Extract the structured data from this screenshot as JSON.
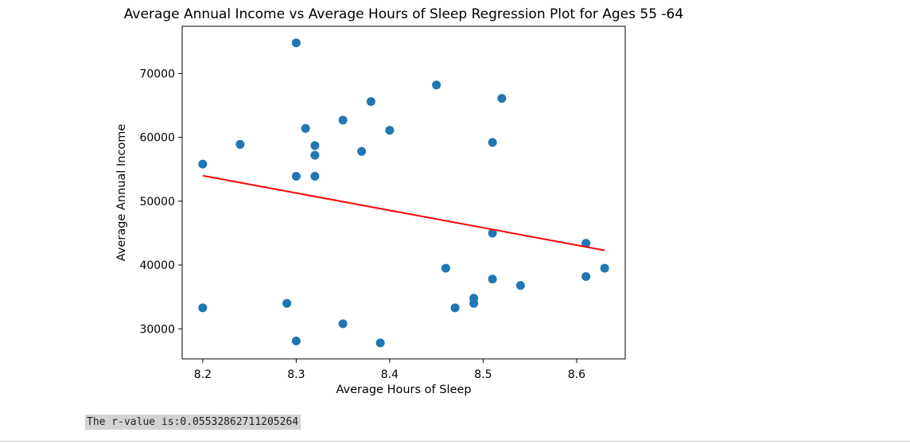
{
  "chart_data": {
    "type": "scatter",
    "title": "Average Annual Income vs Average Hours of Sleep Regression Plot for Ages 55 -64",
    "xlabel": "Average Hours of Sleep",
    "ylabel": "Average Annual Income",
    "xlim": [
      8.178,
      8.652
    ],
    "ylim": [
      25300,
      77400
    ],
    "xticks": [
      8.2,
      8.3,
      8.4,
      8.5,
      8.6
    ],
    "xtick_labels": [
      "8.2",
      "8.3",
      "8.4",
      "8.5",
      "8.6"
    ],
    "yticks": [
      30000,
      40000,
      50000,
      60000,
      70000
    ],
    "ytick_labels": [
      "30000",
      "40000",
      "50000",
      "60000",
      "70000"
    ],
    "grid": false,
    "points": [
      {
        "x": 8.3,
        "y": 74800
      },
      {
        "x": 8.45,
        "y": 68200
      },
      {
        "x": 8.52,
        "y": 66100
      },
      {
        "x": 8.38,
        "y": 65600
      },
      {
        "x": 8.35,
        "y": 62700
      },
      {
        "x": 8.31,
        "y": 61400
      },
      {
        "x": 8.4,
        "y": 61100
      },
      {
        "x": 8.51,
        "y": 59200
      },
      {
        "x": 8.24,
        "y": 58900
      },
      {
        "x": 8.32,
        "y": 58700
      },
      {
        "x": 8.37,
        "y": 57800
      },
      {
        "x": 8.32,
        "y": 57200
      },
      {
        "x": 8.2,
        "y": 55800
      },
      {
        "x": 8.3,
        "y": 53900
      },
      {
        "x": 8.32,
        "y": 53900
      },
      {
        "x": 8.51,
        "y": 45000
      },
      {
        "x": 8.61,
        "y": 43400
      },
      {
        "x": 8.46,
        "y": 39500
      },
      {
        "x": 8.63,
        "y": 39500
      },
      {
        "x": 8.61,
        "y": 38200
      },
      {
        "x": 8.51,
        "y": 37800
      },
      {
        "x": 8.54,
        "y": 36800
      },
      {
        "x": 8.49,
        "y": 34800
      },
      {
        "x": 8.29,
        "y": 34000
      },
      {
        "x": 8.49,
        "y": 34000
      },
      {
        "x": 8.2,
        "y": 33300
      },
      {
        "x": 8.47,
        "y": 33300
      },
      {
        "x": 8.35,
        "y": 30800
      },
      {
        "x": 8.3,
        "y": 28100
      },
      {
        "x": 8.39,
        "y": 27800
      }
    ],
    "regression_line": {
      "x": [
        8.2,
        8.63
      ],
      "y": [
        54000,
        42300
      ]
    },
    "colors": {
      "points": "#1f77b4",
      "regression": "#ff0000"
    }
  },
  "output": {
    "text": "The r-value is:0.05532862711205264"
  }
}
